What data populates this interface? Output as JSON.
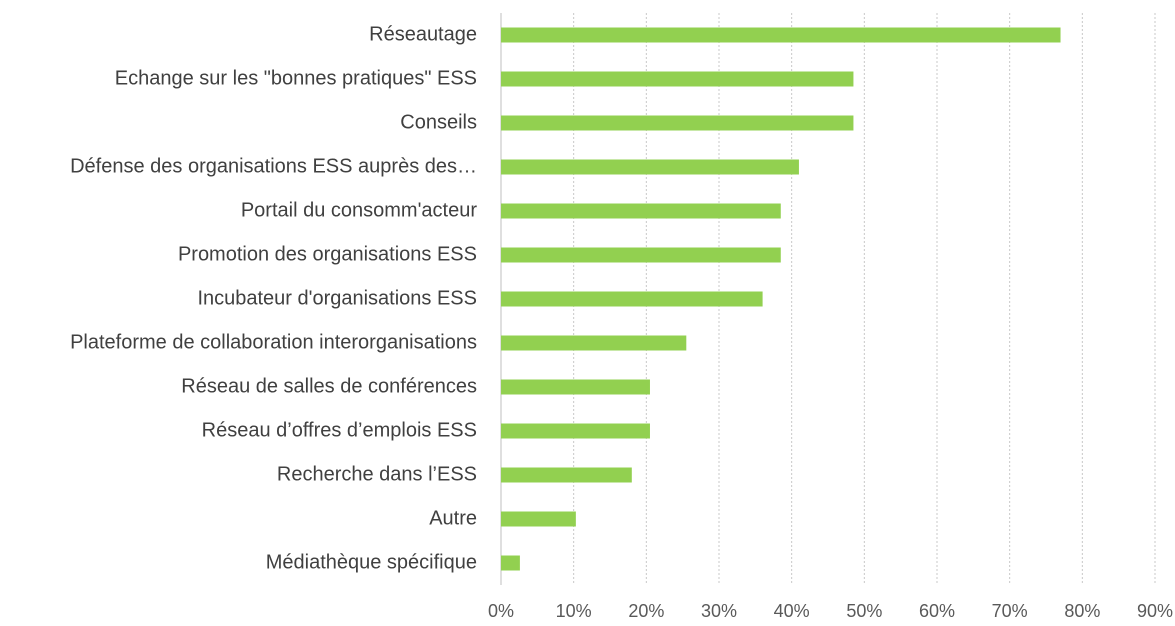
{
  "chart_data": {
    "type": "barh",
    "categories": [
      "Réseautage",
      "Echange sur les \"bonnes pratiques\" ESS",
      "Conseils",
      "Défense des organisations ESS auprès des…",
      "Portail du consomm'acteur",
      "Promotion des organisations ESS",
      "Incubateur d'organisations ESS",
      "Plateforme de collaboration interorganisations",
      "Réseau de salles de conférences",
      "Réseau d’offres d’emplois ESS",
      "Recherche dans l’ESS",
      "Autre",
      "Médiathèque spécifique"
    ],
    "values": [
      77,
      48.5,
      48.5,
      41,
      38.5,
      38.5,
      36,
      25.5,
      20.5,
      20.5,
      18,
      10.3,
      2.6
    ],
    "color": "#92d050",
    "xlim": [
      0,
      90
    ],
    "xticks": [
      {
        "value": 0,
        "label": "0%"
      },
      {
        "value": 10,
        "label": "10%"
      },
      {
        "value": 20,
        "label": "20%"
      },
      {
        "value": 30,
        "label": "30%"
      },
      {
        "value": 40,
        "label": "40%"
      },
      {
        "value": 50,
        "label": "50%"
      },
      {
        "value": 60,
        "label": "60%"
      },
      {
        "value": 70,
        "label": "70%"
      },
      {
        "value": 80,
        "label": "80%"
      },
      {
        "value": 90,
        "label": "90%"
      }
    ],
    "grid": true
  }
}
